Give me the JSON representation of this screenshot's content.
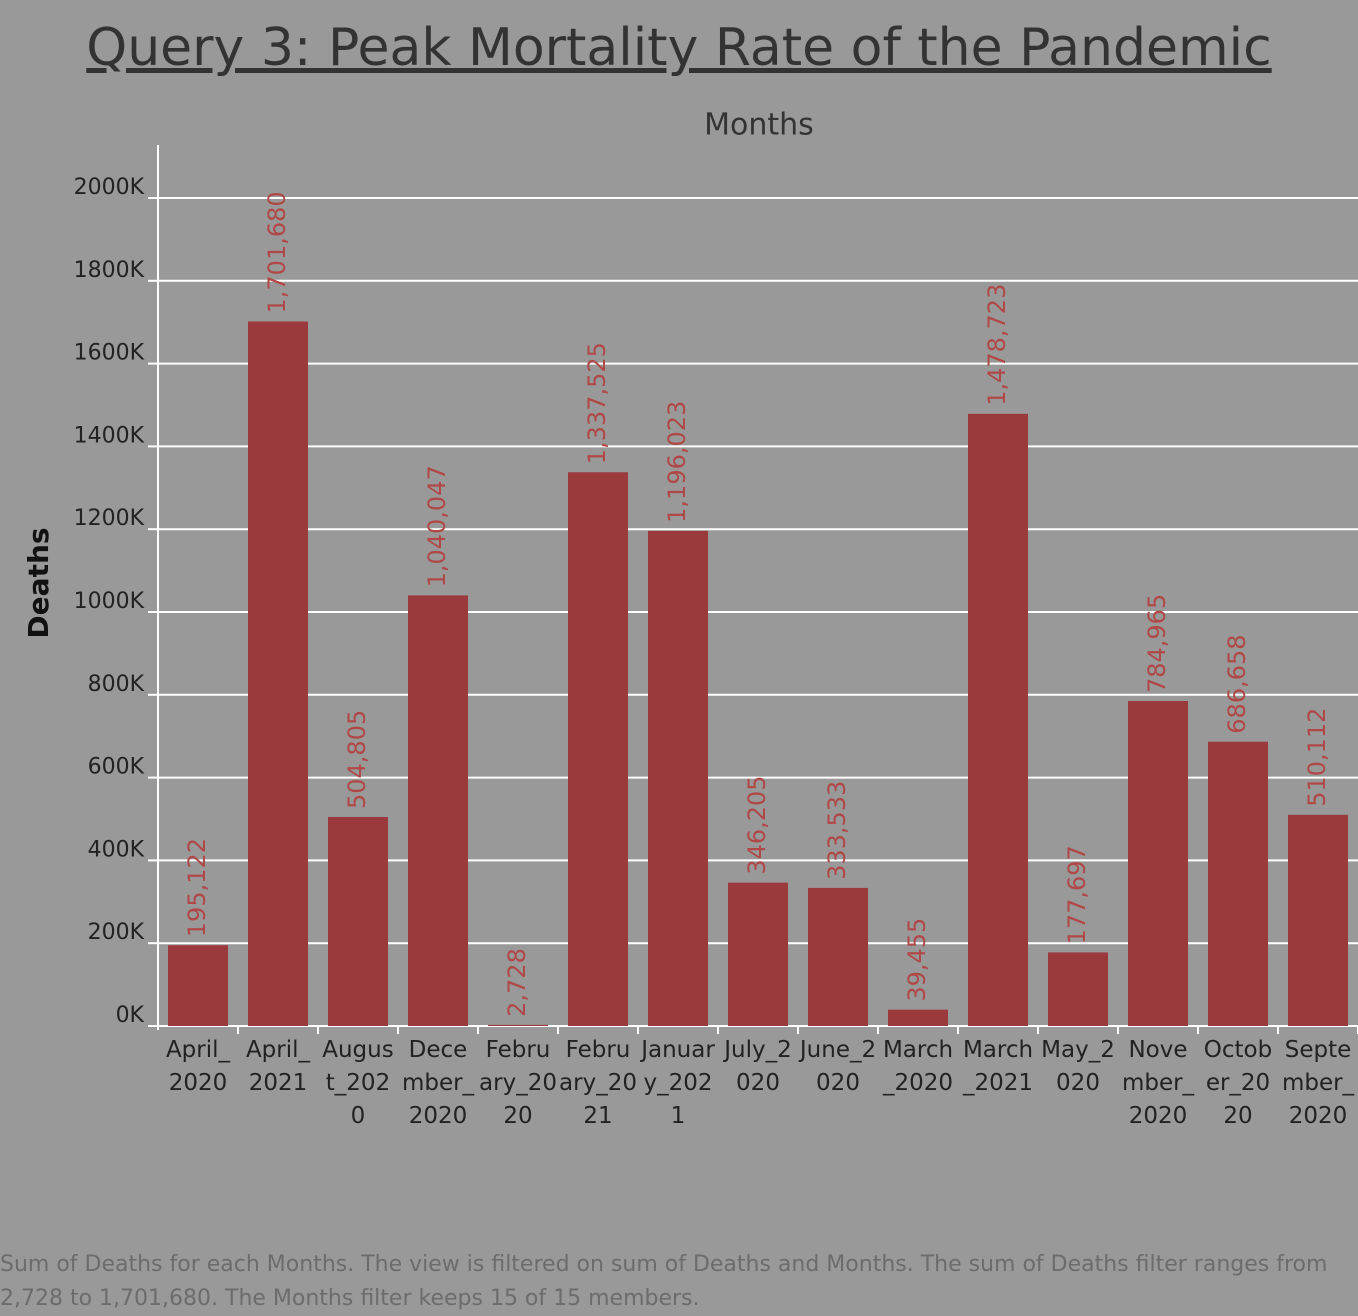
{
  "chart_data": {
    "type": "bar",
    "title": "Query 3: Peak Mortality Rate of the Pandemic",
    "x_label": "Months",
    "y_label": "Deaths",
    "categories": [
      "April_2020",
      "April_2021",
      "August_2020",
      "December_2020",
      "February_2020",
      "February_2021",
      "January_2021",
      "July_2020",
      "June_2020",
      "March_2020",
      "March_2021",
      "May_2020",
      "November_2020",
      "October_2020",
      "September_2020"
    ],
    "values": [
      195122,
      1701680,
      504805,
      1040047,
      2728,
      1337525,
      1196023,
      346205,
      333533,
      39455,
      1478723,
      177697,
      784965,
      686658,
      510112
    ],
    "value_labels": [
      "195,122",
      "1,701,680",
      "504,805",
      "1,040,047",
      "2,728",
      "1,337,525",
      "1,196,023",
      "346,205",
      "333,533",
      "39,455",
      "1,478,723",
      "177,697",
      "784,965",
      "686,658",
      "510,112"
    ],
    "color": "#9b3a3d",
    "ylim": [
      0,
      2128000
    ],
    "yticks": [
      {
        "value": 0,
        "label": "0K"
      },
      {
        "value": 200000,
        "label": "200K"
      },
      {
        "value": 400000,
        "label": "400K"
      },
      {
        "value": 600000,
        "label": "600K"
      },
      {
        "value": 800000,
        "label": "800K"
      },
      {
        "value": 1000000,
        "label": "1000K"
      },
      {
        "value": 1200000,
        "label": "1200K"
      },
      {
        "value": 1400000,
        "label": "1400K"
      },
      {
        "value": 1600000,
        "label": "1600K"
      },
      {
        "value": 1800000,
        "label": "1800K"
      },
      {
        "value": 2000000,
        "label": "2000K"
      }
    ],
    "grid": true,
    "caption": "Sum of Deaths for each Months. The view is filtered on sum of Deaths and Months. The sum of Deaths filter ranges from 2,728 to 1,701,680. The Months filter keeps 15 of 15 members."
  }
}
